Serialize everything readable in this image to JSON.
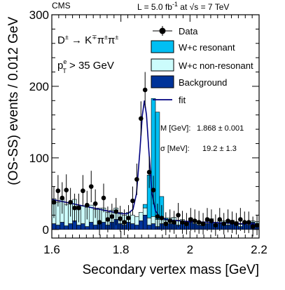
{
  "header": {
    "experiment": "CMS",
    "lumi_prefix": "L = 5.0 fb",
    "lumi_sup": "-1",
    "energy_mid": " at ",
    "sqrt_sym": "√",
    "energy_suffix": "s = 7 TeV"
  },
  "annotations": {
    "decay_main": "D",
    "decay_sup1": "±",
    "decay_arrow": " → K",
    "decay_sup2": "∓",
    "decay_pi1": "π",
    "decay_sup3": "±",
    "decay_pi2": "π",
    "decay_sup4": "±",
    "cut_p": "p",
    "cut_sup": "e",
    "cut_sub": "T",
    "cut_rest": " > 35 GeV",
    "mass_label": "M [GeV]:",
    "mass_value": "1.868 ± 0.001",
    "sigma_label": "σ [MeV]:",
    "sigma_value": "19.2 ± 1.3"
  },
  "colors": {
    "resonant": "#00bff3",
    "nonresonant": "#ccfcfc",
    "background": "#003399",
    "fit": "#000080",
    "data": "#000000"
  },
  "chart_data": {
    "type": "bar",
    "xlabel": "Secondary vertex mass [GeV]",
    "ylabel": "(OS-SS) events / 0.012 GeV",
    "xlim": [
      1.6,
      2.2
    ],
    "ylim": [
      -12,
      300
    ],
    "x_ticks": [
      1.6,
      1.8,
      2.0,
      2.2
    ],
    "x_tick_labels": [
      "1.6",
      "1.8",
      "2",
      "2.2"
    ],
    "y_ticks": [
      0,
      100,
      200,
      300
    ],
    "y_tick_labels": [
      "0",
      "100",
      "200",
      "300"
    ],
    "legend": {
      "placement": "top-right",
      "entries": [
        {
          "label": "Data",
          "kind": "marker"
        },
        {
          "label": "W+c resonant",
          "kind": "box",
          "color": "#00bff3"
        },
        {
          "label": "W+c non-resonant",
          "kind": "box",
          "color": "#ccfcfc"
        },
        {
          "label": "Background",
          "kind": "box",
          "color": "#003399"
        },
        {
          "label": "fit",
          "kind": "line",
          "color": "#000080"
        }
      ]
    },
    "bin_width": 0.012,
    "bin_edges_start": 1.6,
    "stack": {
      "background": [
        8,
        6,
        10,
        5,
        8,
        12,
        6,
        8,
        4,
        10,
        6,
        8,
        10,
        6,
        10,
        14,
        8,
        6,
        10,
        8,
        6,
        12,
        20,
        6,
        8,
        4,
        8,
        5,
        8,
        10,
        6,
        8,
        5,
        10,
        8,
        6,
        5,
        8,
        10,
        6,
        8,
        8,
        6,
        10,
        8,
        4,
        8,
        6,
        10,
        8
      ],
      "nonresonant": [
        35,
        32,
        34,
        30,
        28,
        30,
        27,
        25,
        27,
        24,
        22,
        22,
        20,
        18,
        17,
        16,
        16,
        14,
        14,
        12,
        12,
        12,
        10,
        10,
        10,
        10,
        8,
        8,
        8,
        7,
        7,
        6,
        6,
        6,
        5,
        5,
        5,
        4,
        5,
        4,
        4,
        4,
        4,
        3,
        3,
        3,
        2,
        3,
        2,
        3
      ],
      "resonant": [
        0,
        0,
        0,
        0,
        0,
        0,
        0,
        0,
        0,
        0,
        0,
        0,
        0,
        0,
        0,
        0,
        0,
        0,
        0,
        0,
        0,
        0,
        5,
        60,
        165,
        150,
        30,
        3,
        0,
        0,
        0,
        0,
        0,
        0,
        0,
        0,
        0,
        0,
        0,
        0,
        0,
        0,
        0,
        0,
        0,
        0,
        0,
        0,
        0,
        0
      ]
    },
    "data_points": {
      "x": [
        1.606,
        1.618,
        1.63,
        1.642,
        1.654,
        1.666,
        1.678,
        1.69,
        1.702,
        1.714,
        1.726,
        1.738,
        1.75,
        1.762,
        1.774,
        1.786,
        1.798,
        1.81,
        1.822,
        1.834,
        1.846,
        1.858,
        1.87,
        1.882,
        1.894,
        1.906,
        1.918,
        1.93,
        1.942,
        1.954,
        1.966,
        1.978,
        1.99,
        2.002,
        2.014,
        2.026,
        2.038,
        2.05,
        2.062,
        2.074,
        2.086,
        2.098,
        2.11,
        2.122,
        2.134,
        2.146,
        2.158,
        2.17,
        2.182,
        2.194
      ],
      "y": [
        38,
        54,
        44,
        55,
        38,
        30,
        30,
        54,
        34,
        60,
        36,
        10,
        44,
        14,
        18,
        25,
        15,
        10,
        16,
        40,
        70,
        155,
        195,
        80,
        55,
        18,
        16,
        8,
        12,
        10,
        20,
        10,
        8,
        14,
        12,
        10,
        8,
        14,
        12,
        6,
        14,
        8,
        12,
        10,
        8,
        14,
        10,
        10,
        4,
        6
      ],
      "yerr": [
        22,
        22,
        22,
        22,
        20,
        20,
        20,
        22,
        20,
        22,
        20,
        18,
        20,
        18,
        18,
        19,
        18,
        18,
        18,
        20,
        22,
        24,
        25,
        22,
        20,
        18,
        18,
        16,
        16,
        16,
        17,
        16,
        15,
        16,
        16,
        16,
        15,
        16,
        16,
        15,
        16,
        15,
        16,
        15,
        15,
        16,
        15,
        15,
        14,
        14
      ]
    },
    "fit": {
      "x": [
        1.6,
        1.64,
        1.68,
        1.72,
        1.76,
        1.8,
        1.82,
        1.835,
        1.845,
        1.855,
        1.862,
        1.868,
        1.874,
        1.881,
        1.89,
        1.9,
        1.915,
        1.94,
        2.0,
        2.1,
        2.2
      ],
      "y": [
        42,
        38,
        34,
        30,
        26,
        22,
        22,
        28,
        50,
        110,
        160,
        180,
        160,
        110,
        50,
        26,
        16,
        13,
        11,
        9,
        7
      ]
    }
  }
}
